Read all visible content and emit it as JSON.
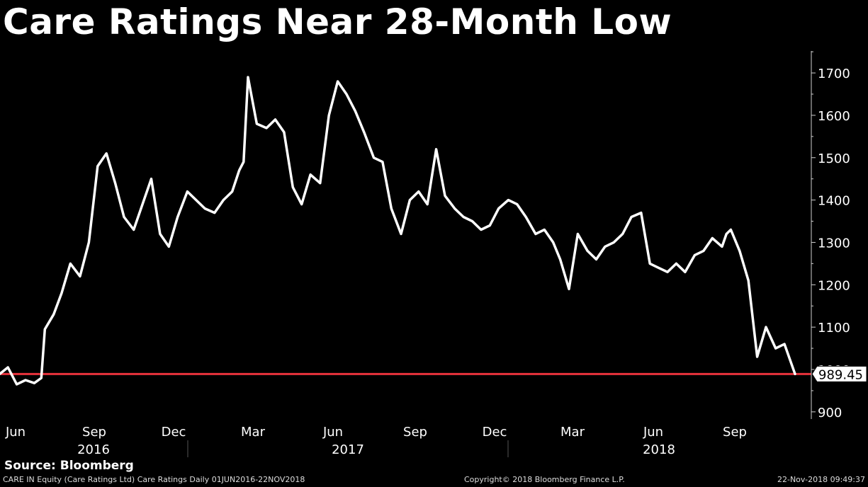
{
  "title": "Care Ratings Near 28-Month Low",
  "source": "Source: Bloomberg",
  "footer": {
    "security": "CARE IN Equity (Care Ratings Ltd) Care Ratings  Daily 01JUN2016-22NOV2018",
    "copyright": "Copyright© 2018 Bloomberg Finance L.P.",
    "timestamp": "22-Nov-2018 09:49:37"
  },
  "chart_data": {
    "type": "line",
    "title": "Care Ratings Near 28-Month Low",
    "xlabel": "",
    "ylabel": "",
    "ylim": [
      880,
      1780
    ],
    "yticks": [
      900,
      1000,
      1100,
      1200,
      1300,
      1400,
      1500,
      1600,
      1700
    ],
    "month_ticks": [
      "Jun",
      "Sep",
      "Dec",
      "Mar",
      "Jun",
      "Sep",
      "Dec",
      "Mar",
      "Jun",
      "Sep"
    ],
    "year_labels": [
      "2016",
      "2017",
      "2018"
    ],
    "last_price_label": "989.45",
    "reference_line": 989.45,
    "reference_color": "#e8323c",
    "line_color": "#ffffff",
    "series": [
      {
        "x": [
          "2016-06-01",
          "2016-06-10",
          "2016-06-20",
          "2016-06-30",
          "2016-07-10",
          "2016-07-18",
          "2016-07-22",
          "2016-08-01",
          "2016-08-10",
          "2016-08-20",
          "2016-08-31",
          "2016-09-10",
          "2016-09-20",
          "2016-09-30",
          "2016-10-10",
          "2016-10-20",
          "2016-10-31",
          "2016-11-10",
          "2016-11-20",
          "2016-11-30",
          "2016-12-10",
          "2016-12-20",
          "2016-12-31",
          "2017-01-10",
          "2017-01-20",
          "2017-01-31",
          "2017-02-10",
          "2017-02-20",
          "2017-02-28",
          "2017-03-05",
          "2017-03-10",
          "2017-03-20",
          "2017-03-31",
          "2017-04-10",
          "2017-04-20",
          "2017-04-30",
          "2017-05-10",
          "2017-05-20",
          "2017-05-31",
          "2017-06-10",
          "2017-06-20",
          "2017-06-30",
          "2017-07-10",
          "2017-07-20",
          "2017-07-31",
          "2017-08-10",
          "2017-08-20",
          "2017-08-31",
          "2017-09-10",
          "2017-09-20",
          "2017-09-30",
          "2017-10-10",
          "2017-10-20",
          "2017-10-31",
          "2017-11-10",
          "2017-11-20",
          "2017-11-30",
          "2017-12-10",
          "2017-12-20",
          "2017-12-31",
          "2018-01-10",
          "2018-01-20",
          "2018-01-31",
          "2018-02-10",
          "2018-02-20",
          "2018-02-28",
          "2018-03-10",
          "2018-03-20",
          "2018-03-31",
          "2018-04-10",
          "2018-04-20",
          "2018-04-30",
          "2018-05-10",
          "2018-05-20",
          "2018-05-31",
          "2018-06-10",
          "2018-06-20",
          "2018-06-30",
          "2018-07-10",
          "2018-07-20",
          "2018-07-31",
          "2018-08-10",
          "2018-08-20",
          "2018-08-31",
          "2018-09-05",
          "2018-09-10",
          "2018-09-20",
          "2018-09-30",
          "2018-10-10",
          "2018-10-20",
          "2018-10-31",
          "2018-11-10",
          "2018-11-22"
        ],
        "y": [
          990,
          1005,
          965,
          975,
          968,
          980,
          1095,
          1130,
          1180,
          1250,
          1220,
          1300,
          1480,
          1510,
          1440,
          1360,
          1330,
          1390,
          1450,
          1320,
          1290,
          1360,
          1420,
          1400,
          1380,
          1370,
          1400,
          1420,
          1470,
          1490,
          1690,
          1580,
          1570,
          1590,
          1560,
          1430,
          1390,
          1460,
          1440,
          1600,
          1680,
          1650,
          1610,
          1560,
          1500,
          1490,
          1380,
          1320,
          1400,
          1420,
          1390,
          1520,
          1410,
          1380,
          1360,
          1350,
          1330,
          1340,
          1380,
          1400,
          1390,
          1360,
          1320,
          1330,
          1300,
          1260,
          1190,
          1320,
          1280,
          1260,
          1290,
          1300,
          1320,
          1360,
          1370,
          1250,
          1240,
          1230,
          1250,
          1230,
          1270,
          1280,
          1310,
          1290,
          1320,
          1330,
          1280,
          1210,
          1030,
          1100,
          1050,
          1060,
          989.45
        ]
      }
    ]
  }
}
